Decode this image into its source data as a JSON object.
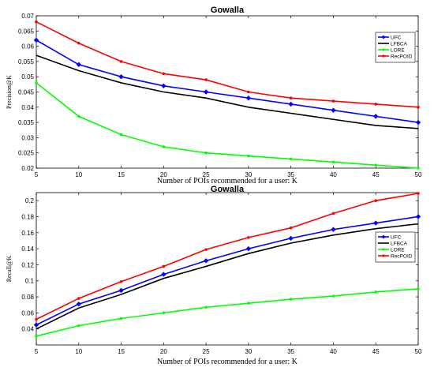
{
  "chart_data": [
    {
      "type": "line",
      "title": "Gowalla",
      "xlabel": "Number of POIs recommended for a user: K",
      "ylabel": "Precision@K",
      "x": [
        5,
        10,
        15,
        20,
        25,
        30,
        35,
        40,
        45,
        50
      ],
      "xticks": [
        "5",
        "10",
        "15",
        "20",
        "25",
        "30",
        "35",
        "40",
        "45",
        "50"
      ],
      "xlim": [
        5,
        50
      ],
      "ylim": [
        0.02,
        0.07
      ],
      "yticks": [
        0.02,
        0.025,
        0.03,
        0.035,
        0.04,
        0.045,
        0.05,
        0.055,
        0.06,
        0.065,
        0.07
      ],
      "yticklabels": [
        "0.02",
        "0.025",
        "0.03",
        "0.035",
        "0.04",
        "0.045",
        "0.05",
        "0.055",
        "0.06",
        "0.065",
        "0.07"
      ],
      "grid": false,
      "legend_position": "top-right",
      "series": [
        {
          "name": "UFC",
          "color": "#0000ff",
          "marker": "diamond",
          "values": [
            0.062,
            0.054,
            0.05,
            0.047,
            0.045,
            0.043,
            0.041,
            0.039,
            0.037,
            0.035
          ]
        },
        {
          "name": "LFBCA",
          "color": "#000000",
          "marker": "none",
          "values": [
            0.057,
            0.052,
            0.048,
            0.045,
            0.043,
            0.04,
            0.038,
            0.036,
            0.034,
            0.033
          ]
        },
        {
          "name": "LORE",
          "color": "#00ff00",
          "marker": "dot",
          "values": [
            0.048,
            0.037,
            0.031,
            0.027,
            0.025,
            0.024,
            0.023,
            0.022,
            0.021,
            0.02
          ]
        },
        {
          "name": "RecPOID",
          "color": "#ff0000",
          "marker": "dot",
          "values": [
            0.068,
            0.061,
            0.055,
            0.051,
            0.049,
            0.045,
            0.043,
            0.042,
            0.041,
            0.04
          ]
        }
      ]
    },
    {
      "type": "line",
      "title": "Gowalla",
      "xlabel": "Number of POIs recommended for a user: K",
      "ylabel": "Recall@K",
      "x": [
        5,
        10,
        15,
        20,
        25,
        30,
        35,
        40,
        45,
        50
      ],
      "xticks": [
        "5",
        "10",
        "15",
        "20",
        "25",
        "30",
        "35",
        "40",
        "45",
        "50"
      ],
      "xlim": [
        5,
        50
      ],
      "ylim": [
        0.02,
        0.21
      ],
      "yticks": [
        0.04,
        0.06,
        0.08,
        0.1,
        0.12,
        0.14,
        0.16,
        0.18,
        0.2
      ],
      "yticklabels": [
        "0.04",
        "0.06",
        "0.08",
        "0.1",
        "0.12",
        "0.14",
        "0.16",
        "0.18",
        "0.2"
      ],
      "grid": false,
      "legend_position": "middle-right",
      "series": [
        {
          "name": "UFC",
          "color": "#0000ff",
          "marker": "diamond",
          "values": [
            0.045,
            0.071,
            0.088,
            0.108,
            0.125,
            0.14,
            0.153,
            0.164,
            0.172,
            0.18
          ]
        },
        {
          "name": "LFBCA",
          "color": "#000000",
          "marker": "none",
          "values": [
            0.04,
            0.066,
            0.083,
            0.103,
            0.118,
            0.134,
            0.147,
            0.157,
            0.165,
            0.171
          ]
        },
        {
          "name": "LORE",
          "color": "#00ff00",
          "marker": "dot",
          "values": [
            0.031,
            0.044,
            0.053,
            0.06,
            0.067,
            0.072,
            0.077,
            0.081,
            0.086,
            0.09
          ]
        },
        {
          "name": "RecPOID",
          "color": "#ff0000",
          "marker": "dot",
          "values": [
            0.052,
            0.078,
            0.099,
            0.118,
            0.139,
            0.154,
            0.166,
            0.184,
            0.2,
            0.209
          ]
        }
      ]
    }
  ]
}
